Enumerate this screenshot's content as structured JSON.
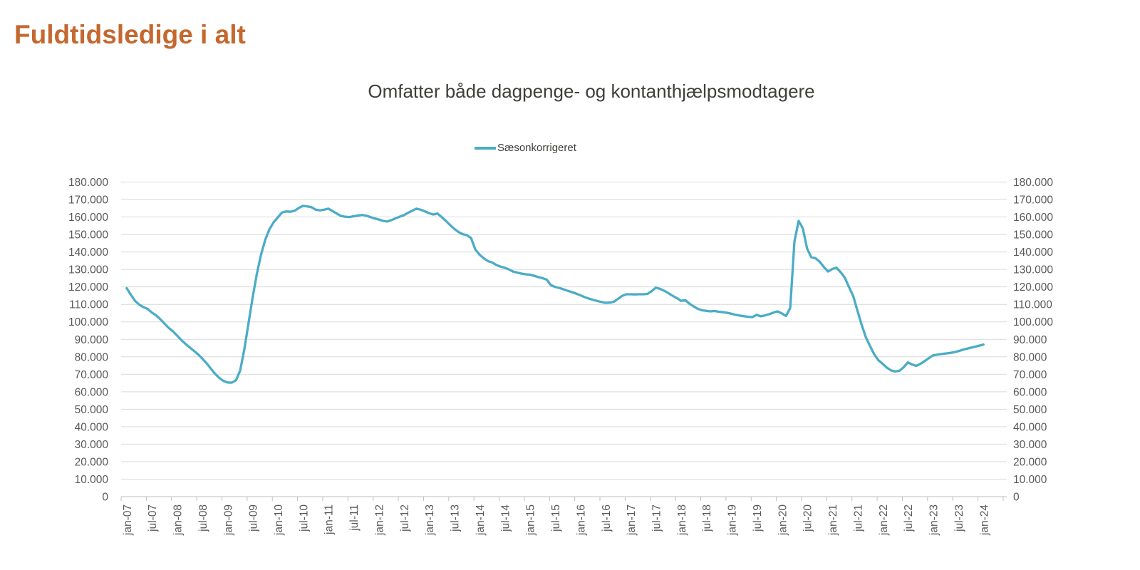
{
  "page": {
    "title": "Fuldtidsledige i alt"
  },
  "chart": {
    "subtitle": "Omfatter både dagpenge- og kontanthjælpsmodtagere",
    "legend_label": "Sæsonkorrigeret"
  },
  "colors": {
    "title_text": "#C4682F",
    "subtitle_text": "#403E3A",
    "axis_text": "#595959",
    "grid_line": "#D9D9D9",
    "axis_line": "#BFBFBF",
    "series_line": "#4BACC6"
  },
  "chart_data": {
    "type": "line",
    "title": "Omfatter både dagpenge- og kontanthjælpsmodtagere",
    "legend_position": "top-center",
    "grid": "horizontal",
    "dual_y_axis": true,
    "ylim": [
      0,
      180000
    ],
    "y_tick_step": 10000,
    "y_tick_labels": [
      "0",
      "10.000",
      "20.000",
      "30.000",
      "40.000",
      "50.000",
      "60.000",
      "70.000",
      "80.000",
      "90.000",
      "100.000",
      "110.000",
      "120.000",
      "130.000",
      "140.000",
      "150.000",
      "160.000",
      "170.000",
      "180.000"
    ],
    "x_tick_interval_months": 6,
    "x_tick_labels": [
      "jan-07",
      "jul-07",
      "jan-08",
      "jul-08",
      "jan-09",
      "jul-09",
      "jan-10",
      "jul-10",
      "jan-11",
      "jul-11",
      "jan-12",
      "jul-12",
      "jan-13",
      "jul-13",
      "jan-14",
      "jul-14",
      "jan-15",
      "jul-15",
      "jan-16",
      "jul-16",
      "jan-17",
      "jul-17",
      "jan-18",
      "jul-18",
      "jan-19",
      "jul-19",
      "jan-20",
      "jul-20",
      "jan-21",
      "jul-21",
      "jan-22",
      "jul-22",
      "jan-23",
      "jul-23",
      "jan-24"
    ],
    "series": [
      {
        "name": "Sæsonkorrigeret",
        "color": "#4BACC6",
        "frequency": "monthly",
        "x_start": "jan-07",
        "x_end": "jan-24",
        "values": [
          119300,
          115500,
          112000,
          109800,
          108400,
          107400,
          105300,
          103700,
          101500,
          99000,
          96600,
          94600,
          92200,
          89600,
          87400,
          85400,
          83400,
          81400,
          79000,
          76400,
          73400,
          70400,
          68000,
          66200,
          65300,
          65200,
          66500,
          72000,
          84000,
          99000,
          114000,
          127500,
          138500,
          147000,
          153000,
          157000,
          159800,
          162600,
          163200,
          163000,
          163600,
          165200,
          166400,
          166000,
          165600,
          164200,
          163800,
          164200,
          164800,
          163400,
          162000,
          160600,
          160200,
          160000,
          160400,
          160800,
          161200,
          160800,
          160000,
          159200,
          158600,
          157800,
          157400,
          158200,
          159200,
          160200,
          161000,
          162400,
          163600,
          164800,
          164200,
          163200,
          162200,
          161400,
          162000,
          160000,
          157800,
          155400,
          153200,
          151400,
          150200,
          149600,
          148000,
          141500,
          138500,
          136400,
          134800,
          134000,
          132600,
          131600,
          131000,
          130000,
          128800,
          128200,
          127600,
          127200,
          127000,
          126400,
          125600,
          125000,
          124200,
          121000,
          120000,
          119400,
          118600,
          117800,
          117000,
          116200,
          115200,
          114200,
          113400,
          112600,
          112000,
          111400,
          110900,
          111000,
          111500,
          113200,
          114900,
          115800,
          115800,
          115700,
          115800,
          115800,
          116000,
          117600,
          119600,
          118900,
          117800,
          116400,
          114900,
          113600,
          112000,
          112400,
          110400,
          108800,
          107400,
          106600,
          106300,
          106000,
          106200,
          105800,
          105500,
          105200,
          104600,
          104000,
          103600,
          103200,
          102900,
          102700,
          104000,
          103200,
          103700,
          104400,
          105300,
          106000,
          104800,
          103400,
          108000,
          146000,
          157800,
          153500,
          142000,
          137000,
          136400,
          134400,
          131400,
          128800,
          130200,
          131000,
          128400,
          125200,
          119800,
          114800,
          106400,
          98400,
          91200,
          86200,
          81400,
          78000,
          76000,
          73800,
          72200,
          71600,
          72000,
          74000,
          76800,
          75600,
          74800,
          76000,
          77600,
          79200,
          80800,
          81200,
          81600,
          81900,
          82200,
          82600,
          83200,
          84000,
          84600,
          85200,
          85800,
          86400,
          87000
        ]
      }
    ]
  }
}
